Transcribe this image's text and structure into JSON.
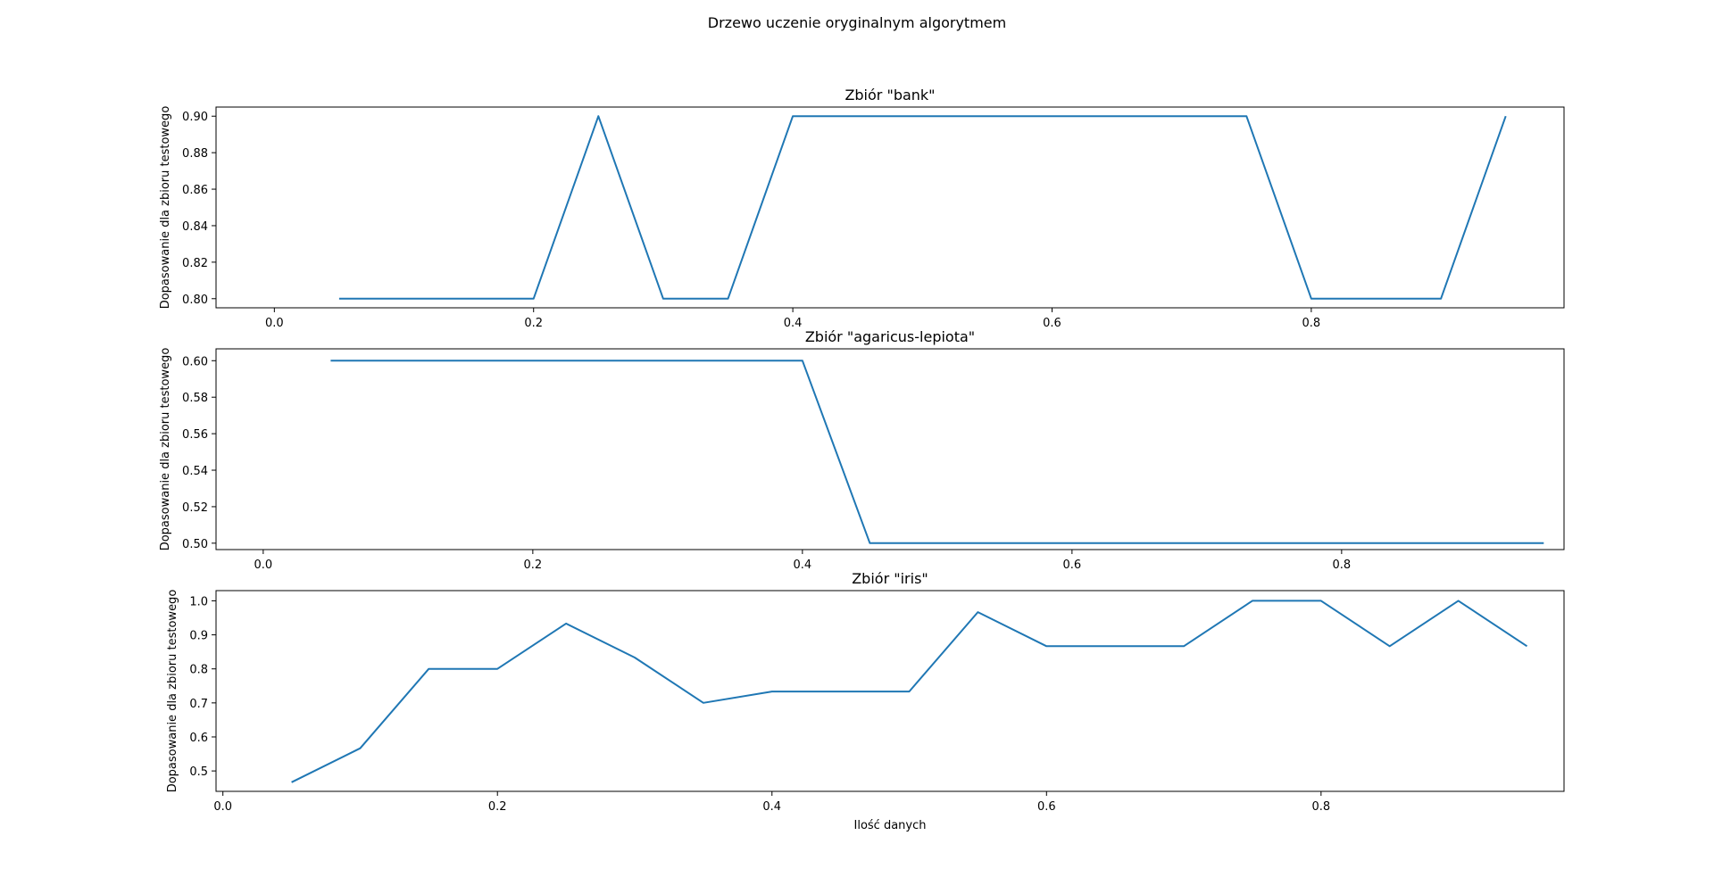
{
  "figure": {
    "title": "Drzewo uczenie oryginalnym algorytmem"
  },
  "line_color": "#1f77b4",
  "chart_data": [
    {
      "type": "line",
      "title": "Zbiór \"bank\"",
      "xlabel": "",
      "ylabel": "Dopasowanie dla zbioru testowego",
      "xlim": [
        -0.045,
        0.995
      ],
      "ylim": [
        0.795,
        0.905
      ],
      "xticks": [
        0.0,
        0.2,
        0.4,
        0.6,
        0.8
      ],
      "xtick_labels": [
        "0.0",
        "0.2",
        "0.4",
        "0.6",
        "0.8"
      ],
      "yticks": [
        0.8,
        0.82,
        0.84,
        0.86,
        0.88,
        0.9
      ],
      "ytick_labels": [
        "0.80",
        "0.82",
        "0.84",
        "0.86",
        "0.88",
        "0.90"
      ],
      "grid": false,
      "series": [
        {
          "x": [
            0.05,
            0.1,
            0.15,
            0.2,
            0.25,
            0.3,
            0.35,
            0.4,
            0.45,
            0.5,
            0.55,
            0.6,
            0.65,
            0.7,
            0.75,
            0.8,
            0.85,
            0.9,
            0.95
          ],
          "y": [
            0.8,
            0.8,
            0.8,
            0.8,
            0.9,
            0.8,
            0.8,
            0.9,
            0.9,
            0.9,
            0.9,
            0.9,
            0.9,
            0.9,
            0.9,
            0.8,
            0.8,
            0.8,
            0.9
          ]
        }
      ]
    },
    {
      "type": "line",
      "title": "Zbiór \"agaricus-lepiota\"",
      "xlabel": "",
      "ylabel": "Dopasowanie dla zbioru testowego",
      "xlim": [
        -0.035,
        0.965
      ],
      "ylim": [
        0.4965,
        0.6065
      ],
      "xticks": [
        0.0,
        0.2,
        0.4,
        0.6,
        0.8
      ],
      "xtick_labels": [
        "0.0",
        "0.2",
        "0.4",
        "0.6",
        "0.8"
      ],
      "yticks": [
        0.5,
        0.52,
        0.54,
        0.56,
        0.58,
        0.6
      ],
      "ytick_labels": [
        "0.50",
        "0.52",
        "0.54",
        "0.56",
        "0.58",
        "0.60"
      ],
      "grid": false,
      "series": [
        {
          "x": [
            0.05,
            0.1,
            0.15,
            0.2,
            0.25,
            0.3,
            0.35,
            0.4,
            0.45,
            0.5,
            0.55,
            0.6,
            0.65,
            0.7,
            0.75,
            0.8,
            0.85,
            0.9,
            0.95
          ],
          "y": [
            0.6,
            0.6,
            0.6,
            0.6,
            0.6,
            0.6,
            0.6,
            0.6,
            0.5,
            0.5,
            0.5,
            0.5,
            0.5,
            0.5,
            0.5,
            0.5,
            0.5,
            0.5,
            0.5
          ]
        }
      ]
    },
    {
      "type": "line",
      "title": "Zbiór \"iris\"",
      "xlabel": "Ilość  danych",
      "ylabel": "Dopasowanie dla zbioru testowego",
      "xlim": [
        -0.005,
        0.977
      ],
      "ylim": [
        0.44,
        1.03
      ],
      "xticks": [
        0.0,
        0.2,
        0.4,
        0.6,
        0.8
      ],
      "xtick_labels": [
        "0.0",
        "0.2",
        "0.4",
        "0.6",
        "0.8"
      ],
      "yticks": [
        0.5,
        0.6,
        0.7,
        0.8,
        0.9,
        1.0
      ],
      "ytick_labels": [
        "0.5",
        "0.6",
        "0.7",
        "0.8",
        "0.9",
        "1.0"
      ],
      "grid": false,
      "series": [
        {
          "x": [
            0.05,
            0.1,
            0.15,
            0.2,
            0.25,
            0.3,
            0.35,
            0.4,
            0.45,
            0.5,
            0.55,
            0.6,
            0.65,
            0.7,
            0.75,
            0.8,
            0.85,
            0.9,
            0.95
          ],
          "y": [
            0.4667,
            0.5667,
            0.8,
            0.8,
            0.9333,
            0.8333,
            0.7,
            0.7333,
            0.7333,
            0.7333,
            0.9667,
            0.8667,
            0.8667,
            0.8667,
            1.0,
            1.0,
            0.8667,
            1.0,
            0.8667
          ]
        }
      ]
    }
  ]
}
